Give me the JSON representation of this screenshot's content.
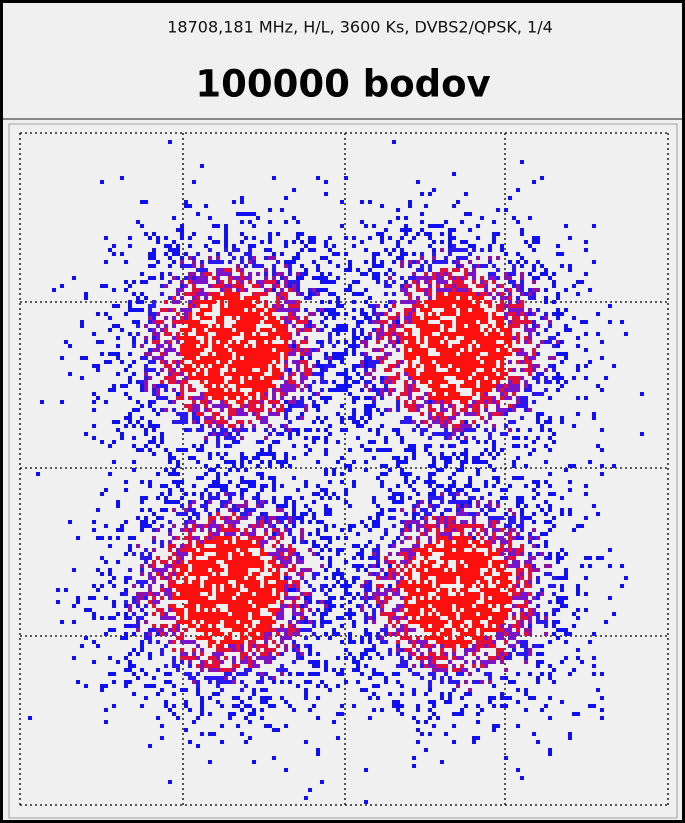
{
  "header": {
    "subtitle": "18708,181 MHz, H/L, 3600 Ks, DVBS2/QPSK, 1/4",
    "title": "100000 bodov"
  }
}
